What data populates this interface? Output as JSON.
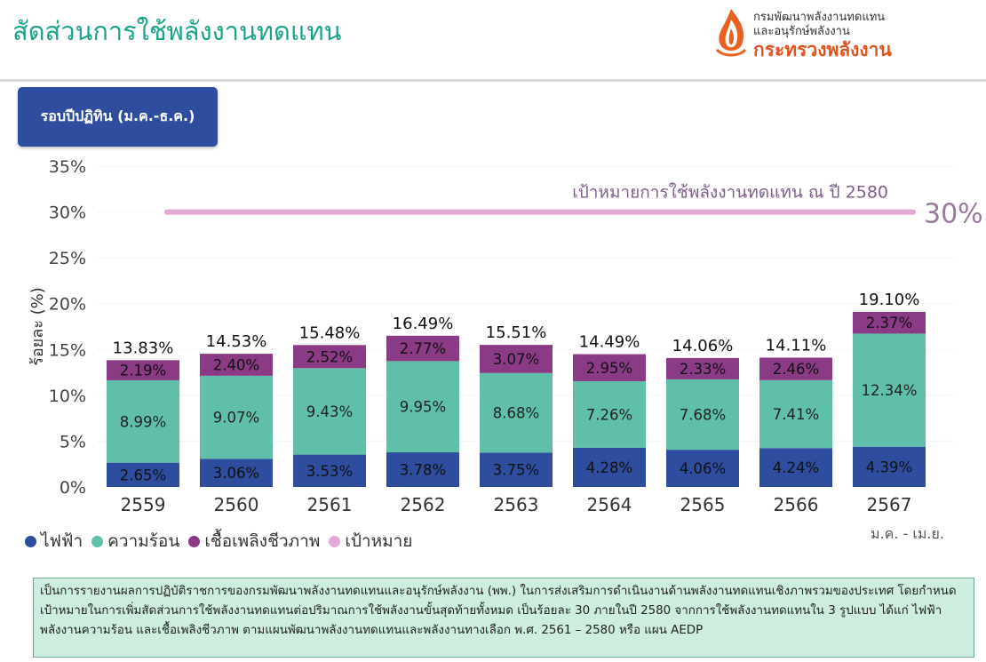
{
  "header": {
    "title": "สัดส่วนการใช้พลังงานทดแทน",
    "org_line1": "กรมพัฒนาพลังงานทดแทน",
    "org_line2": "และอนุรักษ์พลังงาน",
    "ministry": "กระทรวงพลังงาน"
  },
  "period_button_label": "รอบปีปฏิทิน (ม.ค.-ธ.ค.)",
  "legend": [
    {
      "label": "ไฟฟ้า",
      "color": "#2e4d9e"
    },
    {
      "label": "ความร้อน",
      "color": "#5fbfa8"
    },
    {
      "label": "เชื้อเพลิงชีวภาพ",
      "color": "#8b3a86"
    },
    {
      "label": "เป้าหมาย",
      "color": "#e3a9d6"
    }
  ],
  "last_year_note": "ม.ค. - เม.ย.",
  "footer_text": "เป็นการรายงานผลการปฏิบัติราชการของกรมพัฒนาพลังงานทดแทนและอนุรักษ์พลังงาน (พพ.) ในการส่งเสริมการดำเนินงานด้านพลังงานทดแทนเชิงภาพรวมของประเทศ โดยกำหนดเป้าหมายในการเพิ่มสัดส่วนการใช้พลังงานทดแทนต่อปริมาณการใช้พลังงานขั้นสุดท้ายทั้งหมด เป็นร้อยละ 30 ภายในปี 2580 จากการใช้พลังงานทดแทนใน 3 รูปแบบ ได้แก่ ไฟฟ้า พลังงานความร้อน และเชื้อเพลิงชีวภาพ ตามแผนพัฒนาพลังงานทดแทนและพลังงานทางเลือก พ.ศ. 2561 – 2580 หรือ แผน AEDP",
  "chart_data": {
    "type": "bar",
    "stacked": true,
    "categories": [
      "2559",
      "2560",
      "2561",
      "2562",
      "2563",
      "2564",
      "2565",
      "2566",
      "2567"
    ],
    "series": [
      {
        "name": "ไฟฟ้า",
        "color": "#2e4d9e",
        "values": [
          2.65,
          3.06,
          3.53,
          3.78,
          3.75,
          4.28,
          4.06,
          4.24,
          4.39
        ],
        "labels": [
          "2.65%",
          "3.06%",
          "3.53%",
          "3.78%",
          "3.75%",
          "4.28%",
          "4.06%",
          "4.24%",
          "4.39%"
        ]
      },
      {
        "name": "ความร้อน",
        "color": "#5fbfa8",
        "values": [
          8.99,
          9.07,
          9.43,
          9.95,
          8.68,
          7.26,
          7.68,
          7.41,
          12.34
        ],
        "labels": [
          "8.99%",
          "9.07%",
          "9.43%",
          "9.95%",
          "8.68%",
          "7.26%",
          "7.68%",
          "7.41%",
          "12.34%"
        ]
      },
      {
        "name": "เชื้อเพลิงชีวภาพ",
        "color": "#8b3a86",
        "values": [
          2.19,
          2.4,
          2.52,
          2.77,
          3.07,
          2.95,
          2.33,
          2.46,
          2.37
        ],
        "labels": [
          "2.19%",
          "2.40%",
          "2.52%",
          "2.77%",
          "3.07%",
          "2.95%",
          "2.33%",
          "2.46%",
          "2.37%"
        ]
      }
    ],
    "totals": [
      13.83,
      14.53,
      15.48,
      16.49,
      15.51,
      14.49,
      14.06,
      14.11,
      19.1
    ],
    "total_labels": [
      "13.83%",
      "14.53%",
      "15.48%",
      "16.49%",
      "15.51%",
      "14.49%",
      "14.06%",
      "14.11%",
      "19.10%"
    ],
    "target": {
      "name": "เป้าหมาย",
      "value": 30,
      "label": "เป้าหมายการใช้พลังงานทดแทน ณ ปี 2580",
      "value_label": "30%",
      "color": "#e3a9d6"
    },
    "ylabel": "ร้อยละ (%)",
    "ylim": [
      0,
      35
    ],
    "yticks": [
      0,
      5,
      10,
      15,
      20,
      25,
      30,
      35
    ],
    "ytick_labels": [
      "0%",
      "5%",
      "10%",
      "15%",
      "20%",
      "25%",
      "30%",
      "35%"
    ],
    "grid": true,
    "legend_position": "bottom-left"
  }
}
